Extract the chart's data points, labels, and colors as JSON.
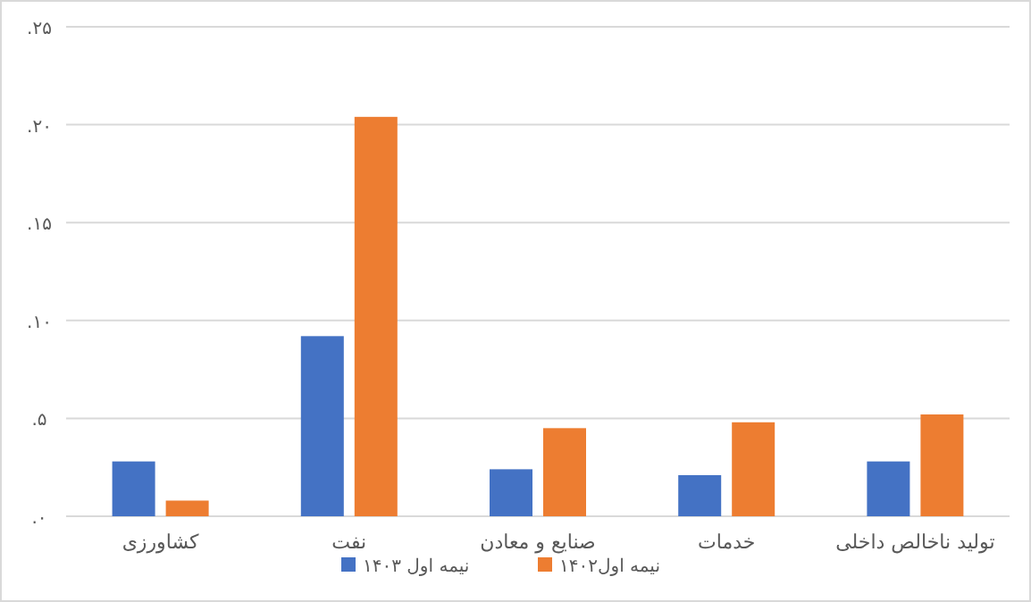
{
  "chart_data": {
    "type": "bar",
    "categories": [
      "کشاورزی",
      "نفت",
      "صنایع و معادن",
      "خدمات",
      "تولید ناخالص داخلی"
    ],
    "series": [
      {
        "name": "نیمه اول ۱۴۰۳",
        "color": "#4472c4",
        "values": [
          2.8,
          9.2,
          2.4,
          2.1,
          2.8
        ]
      },
      {
        "name": "نیمه اول۱۴۰۲",
        "color": "#ed7d31",
        "values": [
          0.8,
          20.4,
          4.5,
          4.8,
          5.2
        ]
      }
    ],
    "ylim": [
      0,
      25
    ],
    "yticks": [
      {
        "value": 0,
        "label": "۰."
      },
      {
        "value": 5,
        "label": "۵."
      },
      {
        "value": 10,
        "label": "۱۰."
      },
      {
        "value": 15,
        "label": "۱۵."
      },
      {
        "value": 20,
        "label": "۲۰."
      },
      {
        "value": 25,
        "label": "۲۵."
      }
    ],
    "grid": "y",
    "legend": "bottom"
  }
}
